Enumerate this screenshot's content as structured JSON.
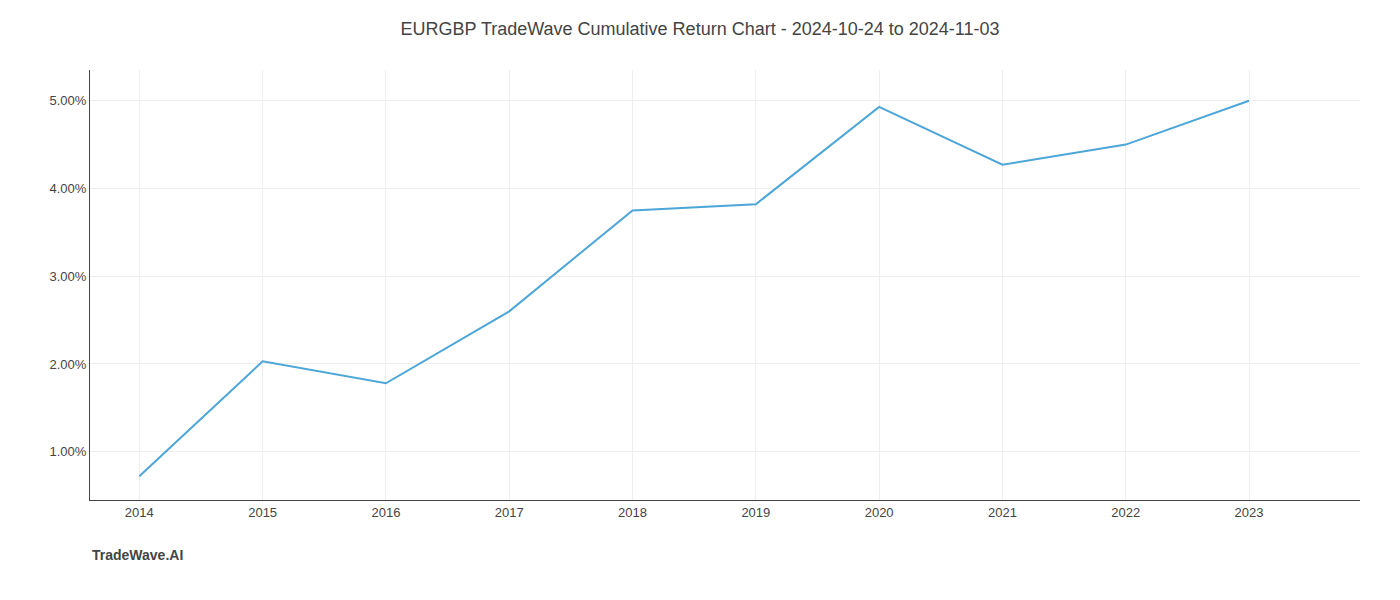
{
  "chart_data": {
    "type": "line",
    "title": "EURGBP TradeWave Cumulative Return Chart - 2024-10-24 to 2024-11-03",
    "annotations": [
      "TradeWave.AI"
    ],
    "x": [
      2014,
      2015,
      2016,
      2017,
      2018,
      2019,
      2020,
      2021,
      2022,
      2023
    ],
    "values": [
      0.72,
      2.03,
      1.78,
      2.6,
      3.75,
      3.82,
      4.93,
      4.27,
      4.5,
      5.0
    ],
    "color": "#4da6d8",
    "xlim": [
      2013.6,
      2023.9
    ],
    "xticks": [
      2014,
      2015,
      2016,
      2017,
      2018,
      2019,
      2020,
      2021,
      2022,
      2023
    ],
    "ylim": [
      0.45,
      5.35
    ],
    "yticks": [
      {
        "value": 1.0,
        "label": "1.00%"
      },
      {
        "value": 2.0,
        "label": "2.00%"
      },
      {
        "value": 3.0,
        "label": "3.00%"
      },
      {
        "value": 4.0,
        "label": "4.00%"
      },
      {
        "value": 5.0,
        "label": "5.00%"
      }
    ],
    "grid": true
  }
}
